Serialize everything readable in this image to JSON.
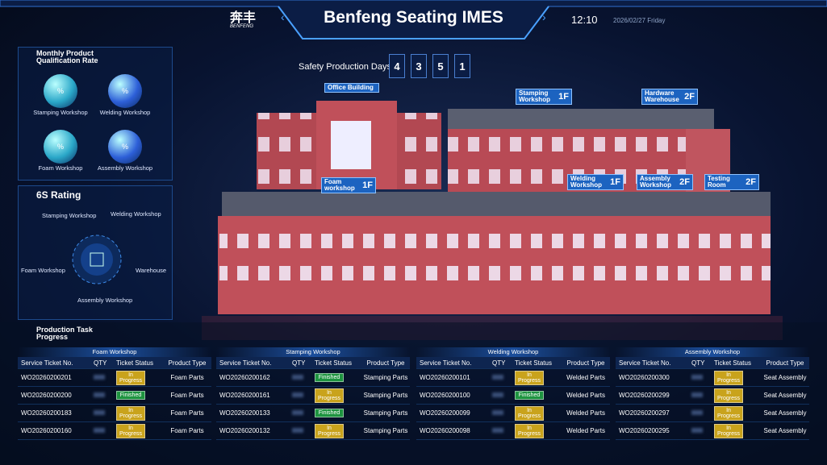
{
  "header": {
    "logo_text": "奔丰",
    "logo_sub": "BENFENG",
    "title": "Benfeng Seating IMES",
    "time": "12:10",
    "date": "2026/02/27 Friday"
  },
  "safety": {
    "label": "Safety Production Days",
    "digits": [
      "4",
      "3",
      "5",
      "1"
    ]
  },
  "qualification": {
    "title": "Monthly Product Qualification Rate",
    "items": [
      {
        "label": "Stamping Workshop",
        "unit": "%"
      },
      {
        "label": "Welding Workshop",
        "unit": "%"
      },
      {
        "label": "Foam Workshop",
        "unit": "%"
      },
      {
        "label": "Assembly Workshop",
        "unit": "%"
      }
    ]
  },
  "rating": {
    "title": "6S Rating",
    "nodes": [
      "Stamping Workshop",
      "Welding Workshop",
      "Foam Workshop",
      "Warehouse",
      "Assembly Workshop"
    ]
  },
  "buildings": [
    {
      "name": "Office Building",
      "floor": ""
    },
    {
      "name": "Stamping Workshop",
      "floor": "1F"
    },
    {
      "name": "Hardware Warehouse",
      "floor": "2F"
    },
    {
      "name": "Foam workshop",
      "floor": "1F"
    },
    {
      "name": "Welding Workshop",
      "floor": "1F"
    },
    {
      "name": "Assembly Workshop",
      "floor": "2F"
    },
    {
      "name": "Testing Room",
      "floor": "2F"
    }
  ],
  "production": {
    "title": "Production Task Progress",
    "columns": [
      "Service Ticket No.",
      "QTY",
      "Ticket Status",
      "Product Type"
    ],
    "tables": [
      {
        "title": "Foam Workshop",
        "rows": [
          {
            "ticket": "WO20260200201",
            "status": "In Progress",
            "status_color": "#c9a31c",
            "type": "Foam Parts"
          },
          {
            "ticket": "WO20260200200",
            "status": "Finished",
            "status_color": "#1e9440",
            "type": "Foam Parts"
          },
          {
            "ticket": "WO20260200183",
            "status": "In Progress",
            "status_color": "#c9a31c",
            "type": "Foam Parts"
          },
          {
            "ticket": "WO20260200160",
            "status": "In Progress",
            "status_color": "#c9a31c",
            "type": "Foam Parts"
          }
        ]
      },
      {
        "title": "Stamping Workshop",
        "rows": [
          {
            "ticket": "WO20260200162",
            "status": "Finished",
            "status_color": "#1e9440",
            "type": "Stamping Parts"
          },
          {
            "ticket": "WO20260200161",
            "status": "In Progress",
            "status_color": "#c9a31c",
            "type": "Stamping Parts"
          },
          {
            "ticket": "WO20260200133",
            "status": "Finished",
            "status_color": "#1e9440",
            "type": "Stamping Parts"
          },
          {
            "ticket": "WO20260200132",
            "status": "In Progress",
            "status_color": "#c9a31c",
            "type": "Stamping Parts"
          }
        ]
      },
      {
        "title": "Welding Workshop",
        "rows": [
          {
            "ticket": "WO20260200101",
            "status": "In Progress",
            "status_color": "#c9a31c",
            "type": "Welded Parts"
          },
          {
            "ticket": "WO20260200100",
            "status": "Finished",
            "status_color": "#1e9440",
            "type": "Welded Parts"
          },
          {
            "ticket": "WO20260200099",
            "status": "In Progress",
            "status_color": "#c9a31c",
            "type": "Welded Parts"
          },
          {
            "ticket": "WO20260200098",
            "status": "In Progress",
            "status_color": "#c9a31c",
            "type": "Welded Parts"
          }
        ]
      },
      {
        "title": "Assembly Workshop",
        "rows": [
          {
            "ticket": "WO20260200300",
            "status": "In Progress",
            "status_color": "#c9a31c",
            "type": "Seat Assembly"
          },
          {
            "ticket": "WO20260200299",
            "status": "In Progress",
            "status_color": "#c9a31c",
            "type": "Seat Assembly"
          },
          {
            "ticket": "WO20260200297",
            "status": "In Progress",
            "status_color": "#c9a31c",
            "type": "Seat Assembly"
          },
          {
            "ticket": "WO20260200295",
            "status": "In Progress",
            "status_color": "#c9a31c",
            "type": "Seat Assembly"
          }
        ]
      }
    ]
  }
}
